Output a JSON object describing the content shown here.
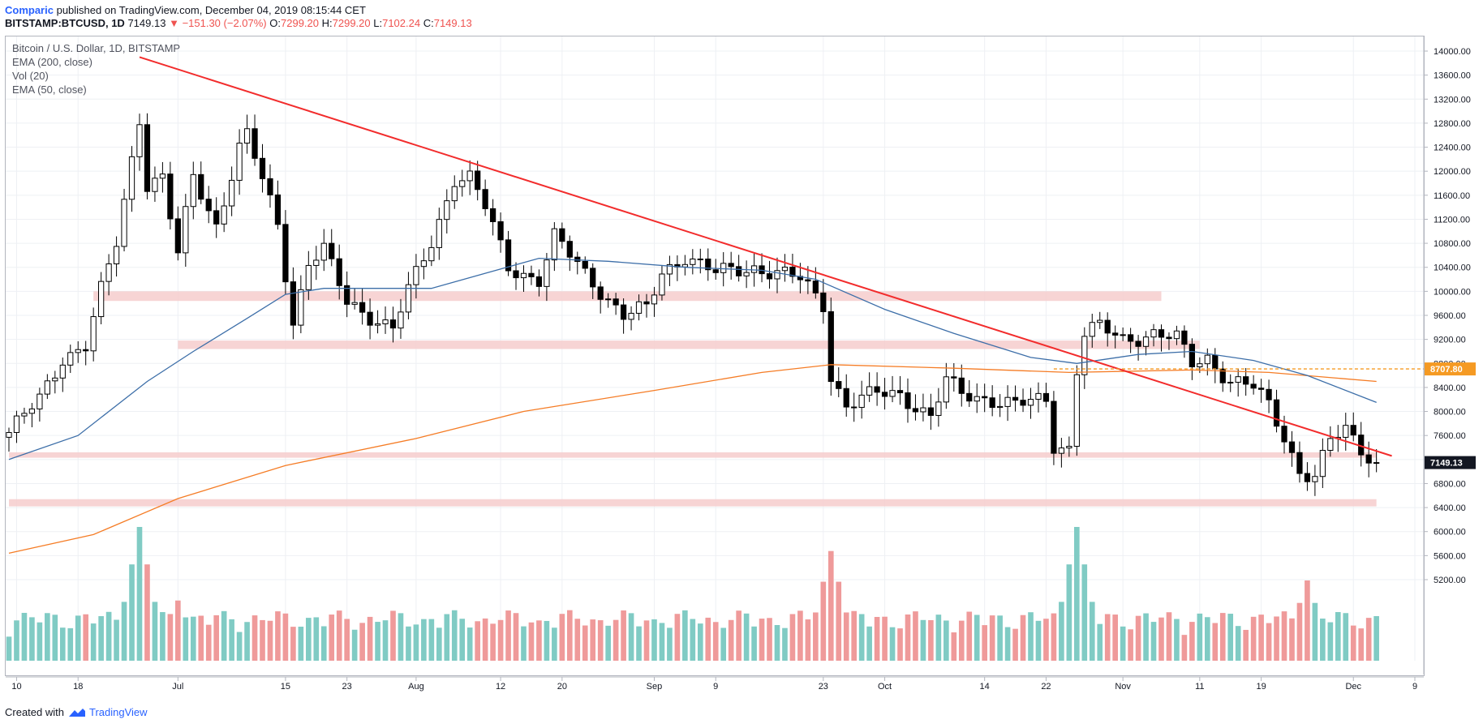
{
  "header": {
    "author": "Comparic",
    "published_text": "published on TradingView.com, December 04, 2019 08:15:44 CET",
    "symbol": "BITSTAMP:BTCUSD, 1D",
    "last": "7149.13",
    "arrow": "▼",
    "change": "−151.30 (−2.07%)",
    "o_label": "O:",
    "o_value": "7299.20",
    "h_label": "H:",
    "h_value": "7299.20",
    "l_label": "L:",
    "l_value": "7102.24",
    "c_label": "C:",
    "c_value": "7149.13"
  },
  "legend": {
    "title": "Bitcoin / U.S. Dollar, 1D, BITSTAMP",
    "ema200": "EMA (200, close)",
    "vol": "Vol (20)",
    "ema50": "EMA (50, close)"
  },
  "footer": {
    "created_with": "Created with",
    "brand": "TradingView"
  },
  "colors": {
    "up": "#ffffff",
    "down": "#000000",
    "wick": "#000000",
    "vol_up": "#80cbc4",
    "vol_down": "#ef9a9a",
    "ema50": "#3c6ea8",
    "ema200": "#f57c25",
    "trendline": "#f22c2c",
    "zone": "#f6cccc",
    "dashed_level": "#f59a23",
    "price_tag": "#131722"
  },
  "chart_data": {
    "type": "candlestick",
    "title": "Bitcoin / U.S. Dollar, 1D, BITSTAMP",
    "y_ticks": [
      14000,
      13600,
      13200,
      12800,
      12400,
      12000,
      11600,
      11200,
      10800,
      10400,
      10000,
      9600,
      9200,
      8800,
      8400,
      8000,
      7600,
      7200,
      6800,
      6400,
      6000,
      5600,
      5200
    ],
    "y_tick_labels": [
      "14000.00",
      "13600.00",
      "13200.00",
      "12800.00",
      "12400.00",
      "12000.00",
      "11600.00",
      "11200.00",
      "10800.00",
      "10400.00",
      "10000.00",
      "9600.00",
      "9200.00",
      "8800.00",
      "8400.00",
      "8000.00",
      "7600.00",
      "7200.00",
      "6800.00",
      "6400.00",
      "6000.00",
      "5600.00",
      "5200.00"
    ],
    "ylim": [
      5200,
      14180
    ],
    "x_start": "2019-06-09",
    "x_end": "2019-12-09",
    "x_ticks": [
      {
        "date": "2019-06-10",
        "label": "10"
      },
      {
        "date": "2019-06-18",
        "label": "18"
      },
      {
        "date": "2019-07-01",
        "label": "Jul"
      },
      {
        "date": "2019-07-15",
        "label": "15"
      },
      {
        "date": "2019-07-23",
        "label": "23"
      },
      {
        "date": "2019-08-01",
        "label": "Aug"
      },
      {
        "date": "2019-08-12",
        "label": "12"
      },
      {
        "date": "2019-08-20",
        "label": "20"
      },
      {
        "date": "2019-09-01",
        "label": "Sep"
      },
      {
        "date": "2019-09-09",
        "label": "9"
      },
      {
        "date": "2019-09-23",
        "label": "23"
      },
      {
        "date": "2019-10-01",
        "label": "Oct"
      },
      {
        "date": "2019-10-14",
        "label": "14"
      },
      {
        "date": "2019-10-22",
        "label": "22"
      },
      {
        "date": "2019-11-01",
        "label": "Nov"
      },
      {
        "date": "2019-11-11",
        "label": "11"
      },
      {
        "date": "2019-11-19",
        "label": "19"
      },
      {
        "date": "2019-12-01",
        "label": "Dec"
      },
      {
        "date": "2019-12-09",
        "label": "9"
      }
    ],
    "anchors": [
      [
        "2019-06-09",
        7650
      ],
      [
        "2019-06-13",
        8200
      ],
      [
        "2019-06-16",
        8900
      ],
      [
        "2019-06-19",
        9100
      ],
      [
        "2019-06-21",
        10000
      ],
      [
        "2019-06-23",
        10800
      ],
      [
        "2019-06-26",
        12900
      ],
      [
        "2019-06-27",
        11800
      ],
      [
        "2019-06-29",
        11900
      ],
      [
        "2019-07-01",
        10600
      ],
      [
        "2019-07-03",
        11900
      ],
      [
        "2019-07-06",
        11100
      ],
      [
        "2019-07-09",
        12400
      ],
      [
        "2019-07-10",
        12600
      ],
      [
        "2019-07-14",
        11100
      ],
      [
        "2019-07-16",
        9500
      ],
      [
        "2019-07-18",
        10500
      ],
      [
        "2019-07-20",
        10700
      ],
      [
        "2019-07-23",
        9800
      ],
      [
        "2019-07-26",
        9600
      ],
      [
        "2019-07-29",
        9400
      ],
      [
        "2019-07-31",
        10000
      ],
      [
        "2019-08-03",
        10800
      ],
      [
        "2019-08-06",
        11900
      ],
      [
        "2019-08-08",
        11900
      ],
      [
        "2019-08-10",
        11400
      ],
      [
        "2019-08-13",
        10400
      ],
      [
        "2019-08-17",
        10200
      ],
      [
        "2019-08-19",
        10900
      ],
      [
        "2019-08-23",
        10300
      ],
      [
        "2019-08-28",
        9600
      ],
      [
        "2019-08-31",
        9700
      ],
      [
        "2019-09-02",
        10300
      ],
      [
        "2019-09-05",
        10600
      ],
      [
        "2019-09-09",
        10300
      ],
      [
        "2019-09-14",
        10400
      ],
      [
        "2019-09-20",
        10200
      ],
      [
        "2019-09-23",
        9800
      ],
      [
        "2019-09-24",
        8600
      ],
      [
        "2019-09-26",
        8100
      ],
      [
        "2019-09-30",
        8300
      ],
      [
        "2019-10-03",
        8300
      ],
      [
        "2019-10-07",
        7900
      ],
      [
        "2019-10-09",
        8500
      ],
      [
        "2019-10-11",
        8300
      ],
      [
        "2019-10-15",
        8200
      ],
      [
        "2019-10-18",
        8100
      ],
      [
        "2019-10-22",
        8200
      ],
      [
        "2019-10-23",
        7450
      ],
      [
        "2019-10-25",
        7400
      ],
      [
        "2019-10-26",
        8700
      ],
      [
        "2019-10-27",
        9300
      ],
      [
        "2019-10-29",
        9400
      ],
      [
        "2019-11-01",
        9200
      ],
      [
        "2019-11-05",
        9300
      ],
      [
        "2019-11-08",
        9200
      ],
      [
        "2019-11-10",
        8800
      ],
      [
        "2019-11-12",
        8900
      ],
      [
        "2019-11-15",
        8500
      ],
      [
        "2019-11-18",
        8400
      ],
      [
        "2019-11-20",
        8100
      ],
      [
        "2019-11-22",
        7600
      ],
      [
        "2019-11-24",
        7000
      ],
      [
        "2019-11-26",
        6900
      ],
      [
        "2019-11-28",
        7500
      ],
      [
        "2019-11-30",
        7700
      ],
      [
        "2019-12-02",
        7400
      ],
      [
        "2019-12-04",
        7149
      ]
    ],
    "volume_peaks": [
      {
        "date": "2019-06-26",
        "value": 1.0
      },
      {
        "date": "2019-07-01",
        "value": 0.45
      },
      {
        "date": "2019-09-24",
        "value": 0.82
      },
      {
        "date": "2019-10-26",
        "value": 1.0
      },
      {
        "date": "2019-11-25",
        "value": 0.6
      }
    ],
    "ema50_points": [
      [
        "2019-06-09",
        7200
      ],
      [
        "2019-06-18",
        7600
      ],
      [
        "2019-06-27",
        8500
      ],
      [
        "2019-07-03",
        9000
      ],
      [
        "2019-07-10",
        9550
      ],
      [
        "2019-07-15",
        9950
      ],
      [
        "2019-07-20",
        10050
      ],
      [
        "2019-07-27",
        10050
      ],
      [
        "2019-08-03",
        10050
      ],
      [
        "2019-08-10",
        10300
      ],
      [
        "2019-08-17",
        10550
      ],
      [
        "2019-08-26",
        10500
      ],
      [
        "2019-09-05",
        10400
      ],
      [
        "2019-09-15",
        10350
      ],
      [
        "2019-09-22",
        10200
      ],
      [
        "2019-10-01",
        9700
      ],
      [
        "2019-10-10",
        9300
      ],
      [
        "2019-10-20",
        8900
      ],
      [
        "2019-10-26",
        8800
      ],
      [
        "2019-11-03",
        8950
      ],
      [
        "2019-11-10",
        9000
      ],
      [
        "2019-11-18",
        8850
      ],
      [
        "2019-11-25",
        8600
      ],
      [
        "2019-12-04",
        8150
      ]
    ],
    "ema200_points": [
      [
        "2019-06-09",
        5640
      ],
      [
        "2019-06-20",
        5950
      ],
      [
        "2019-07-01",
        6550
      ],
      [
        "2019-07-15",
        7100
      ],
      [
        "2019-08-01",
        7550
      ],
      [
        "2019-08-15",
        8000
      ],
      [
        "2019-09-01",
        8350
      ],
      [
        "2019-09-15",
        8650
      ],
      [
        "2019-09-24",
        8780
      ],
      [
        "2019-10-10",
        8720
      ],
      [
        "2019-10-25",
        8650
      ],
      [
        "2019-11-10",
        8690
      ],
      [
        "2019-11-20",
        8650
      ],
      [
        "2019-12-04",
        8500
      ]
    ],
    "trendline": {
      "start": [
        "2019-06-26",
        13900
      ],
      "end": [
        "2019-12-06",
        7260
      ]
    },
    "zones": [
      {
        "from": "2019-06-20",
        "to": "2019-11-06",
        "low": 9840,
        "high": 10000
      },
      {
        "from": "2019-07-01",
        "to": "2019-11-11",
        "low": 9040,
        "high": 9180
      },
      {
        "from": "2019-06-09",
        "to": "2019-12-04",
        "low": 7230,
        "high": 7320
      },
      {
        "from": "2019-06-09",
        "to": "2019-12-04",
        "low": 6420,
        "high": 6540
      }
    ],
    "dashed_level": {
      "value": 8707.8,
      "label": "8707.80"
    },
    "last_price": {
      "value": 7149.13,
      "label": "7149.13"
    },
    "volume_series_name": "Vol (20)",
    "ema50_name": "EMA (50, close)",
    "ema200_name": "EMA (200, close)"
  }
}
